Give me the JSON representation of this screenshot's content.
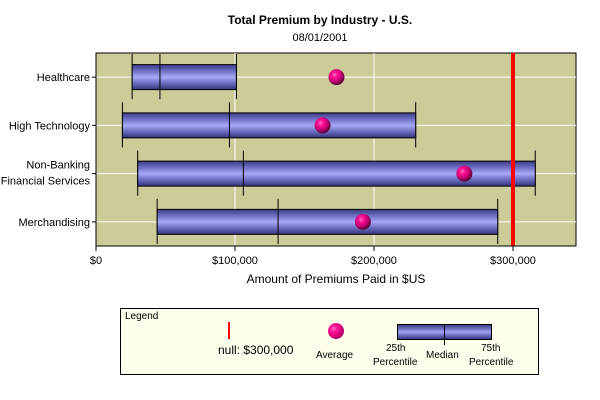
{
  "chart_data": {
    "type": "boxplot",
    "title": "Total Premium by Industry - U.S.",
    "subtitle": "08/01/2001",
    "xlabel": "Amount of Premiums Paid in $US",
    "ylabel": "",
    "xlim": [
      0,
      350000
    ],
    "x_ticks": [
      0,
      100000,
      200000,
      300000
    ],
    "x_tick_labels": [
      "$0",
      "$100,000",
      "$200,000",
      "$300,000"
    ],
    "grid": true,
    "categories": [
      [
        "Healthcare"
      ],
      [
        "High Technology"
      ],
      [
        "Non-Banking",
        "Financial Services"
      ],
      [
        "Merchandising"
      ]
    ],
    "series": [
      {
        "name": "Healthcare",
        "p25": 26000,
        "median": 46000,
        "p75": 101000,
        "average": 173000
      },
      {
        "name": "High Technology",
        "p25": 19000,
        "median": 96000,
        "p75": 230000,
        "average": 163000
      },
      {
        "name": "Non-Banking Financial Services",
        "p25": 30000,
        "median": 106000,
        "p75": 316000,
        "average": 265000
      },
      {
        "name": "Merchandising",
        "p25": 44000,
        "median": 131000,
        "p75": 289000,
        "average": 192000
      }
    ],
    "reference_line": {
      "label": "null: $300,000",
      "value": 300000,
      "color": "#ff0000"
    },
    "colors": {
      "plot_background": "#cccc99",
      "box_fill": "#8888e0",
      "average_marker": "#e0007a",
      "gridline": "#ffffff",
      "legend_background": "#ffffee"
    },
    "legend": {
      "title": "Legend",
      "placement": "bottom",
      "items": {
        "reference": "null: $300,000",
        "average": "Average",
        "p25_line1": "25th",
        "p25_line2": "Percentile",
        "median": "Median",
        "p75_line1": "75th",
        "p75_line2": "Percentile"
      }
    }
  }
}
